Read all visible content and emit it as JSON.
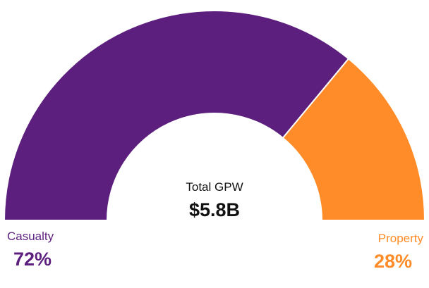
{
  "chart_data": {
    "type": "pie",
    "variant": "semi-donut",
    "center_title": "Total GPW",
    "center_value": "$5.8B",
    "series": [
      {
        "name": "Casualty",
        "value": 72,
        "label": "72%",
        "color": "#5c1f7e"
      },
      {
        "name": "Property",
        "value": 28,
        "label": "28%",
        "color": "#ff8c28"
      }
    ],
    "legend": "bottom"
  }
}
